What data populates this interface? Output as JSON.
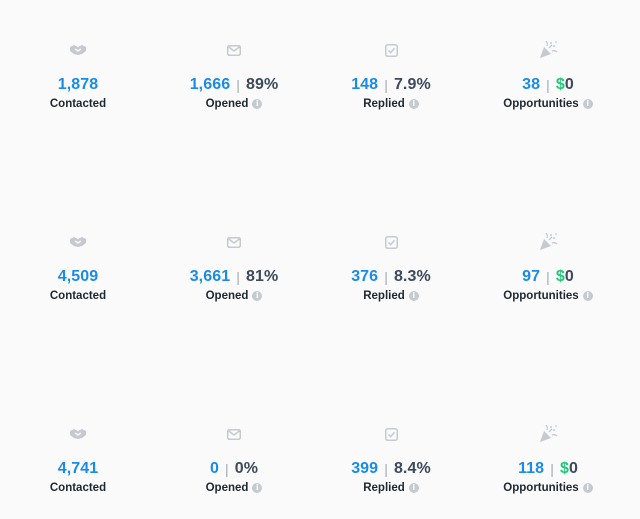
{
  "icons": {
    "contacted": "handshake-icon",
    "opened": "envelope-icon",
    "replied": "check-square-icon",
    "opportunities": "party-popper-icon"
  },
  "colors": {
    "number": "#1a8ce8",
    "percent": "#3c4a5c",
    "dollar": "#22c976",
    "label": "#1f2733",
    "icon": "#c5cad1"
  },
  "rows": [
    {
      "contacted": {
        "value": "1,878",
        "label": "Contacted"
      },
      "opened": {
        "value": "1,666",
        "percent": "89%",
        "label": "Opened"
      },
      "replied": {
        "value": "148",
        "percent": "7.9%",
        "label": "Replied"
      },
      "opportunities": {
        "value": "38",
        "currency": "$",
        "amount": "0",
        "label": "Opportunities"
      }
    },
    {
      "contacted": {
        "value": "4,509",
        "label": "Contacted"
      },
      "opened": {
        "value": "3,661",
        "percent": "81%",
        "label": "Opened"
      },
      "replied": {
        "value": "376",
        "percent": "8.3%",
        "label": "Replied"
      },
      "opportunities": {
        "value": "97",
        "currency": "$",
        "amount": "0",
        "label": "Opportunities"
      }
    },
    {
      "contacted": {
        "value": "4,741",
        "label": "Contacted"
      },
      "opened": {
        "value": "0",
        "percent": "0%",
        "label": "Opened"
      },
      "replied": {
        "value": "399",
        "percent": "8.4%",
        "label": "Replied"
      },
      "opportunities": {
        "value": "118",
        "currency": "$",
        "amount": "0",
        "label": "Opportunities"
      }
    }
  ],
  "separator": "|",
  "info_glyph": "i"
}
